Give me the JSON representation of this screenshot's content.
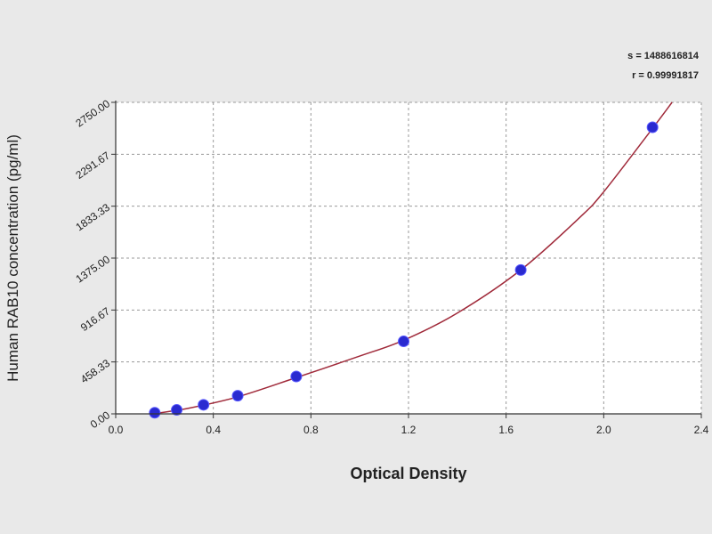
{
  "colors": {
    "background": "#e9e9e9",
    "plot_background": "#ffffff",
    "axis": "#333333",
    "grid": "#9a9a9a",
    "curve": "#a02a3a",
    "marker": "#2a2ad0"
  },
  "stats": {
    "line1": "s = 1488616814",
    "line2": "r = 0.99991817"
  },
  "chart_data": {
    "type": "scatter",
    "xlabel": "Optical Density",
    "ylabel": "Human RAB10 concentration (pg/ml)",
    "xlim": [
      0.0,
      2.4
    ],
    "ylim": [
      0.0,
      2750.0
    ],
    "grid": true,
    "x_ticks": [
      0.0,
      0.4,
      0.8,
      1.2,
      1.6,
      2.0,
      2.4
    ],
    "x_tick_labels": [
      "0.0",
      "0.4",
      "0.8",
      "1.2",
      "1.6",
      "2.0",
      "2.4"
    ],
    "y_ticks": [
      0,
      458.33,
      916.67,
      1375.0,
      1833.33,
      2291.67,
      2750.0
    ],
    "y_tick_labels": [
      "0.00",
      "458.33",
      "916.67",
      "1375.00",
      "1833.33",
      "2291.67",
      "2750.00"
    ],
    "points": {
      "x": [
        0.16,
        0.25,
        0.36,
        0.5,
        0.74,
        1.18,
        1.66,
        2.2
      ],
      "y": [
        10,
        35,
        80,
        160,
        330,
        640,
        1270,
        2530
      ]
    },
    "fit_curve": {
      "x": [
        0.15,
        0.3,
        0.5,
        0.74,
        1.0,
        1.18,
        1.4,
        1.66,
        1.9,
        2.0,
        2.2,
        2.28
      ],
      "y": [
        0,
        50,
        150,
        320,
        510,
        650,
        890,
        1270,
        1730,
        1960,
        2520,
        2750
      ]
    }
  }
}
